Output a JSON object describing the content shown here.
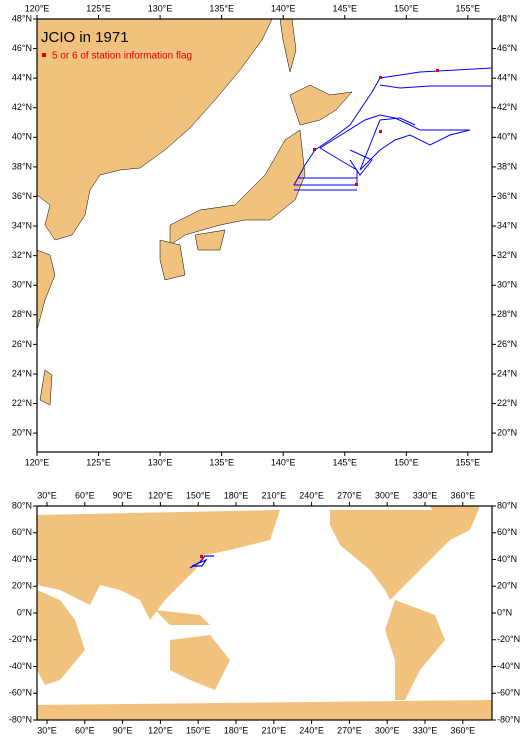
{
  "maps": [
    {
      "title": "JCIO in 1971",
      "legend": "5 or 6 of station information flag",
      "lon_labels": [
        "120°E",
        "125°E",
        "130°E",
        "135°E",
        "140°E",
        "145°E",
        "150°E",
        "155°E"
      ],
      "lat_labels": [
        "48°N",
        "46°N",
        "44°N",
        "42°N",
        "40°N",
        "38°N",
        "36°N",
        "34°N",
        "32°N",
        "30°N",
        "28°N",
        "26°N",
        "24°N",
        "22°N",
        "20°N"
      ]
    },
    {
      "lon_labels": [
        "30°E",
        "60°E",
        "90°E",
        "120°E",
        "150°E",
        "180°E",
        "210°E",
        "240°E",
        "270°E",
        "300°E",
        "330°E",
        "360°E"
      ],
      "lat_labels": [
        "80°N",
        "60°N",
        "40°N",
        "20°N",
        "0°N",
        "-20°N",
        "-40°N",
        "-60°N",
        "-80°N"
      ]
    }
  ]
}
